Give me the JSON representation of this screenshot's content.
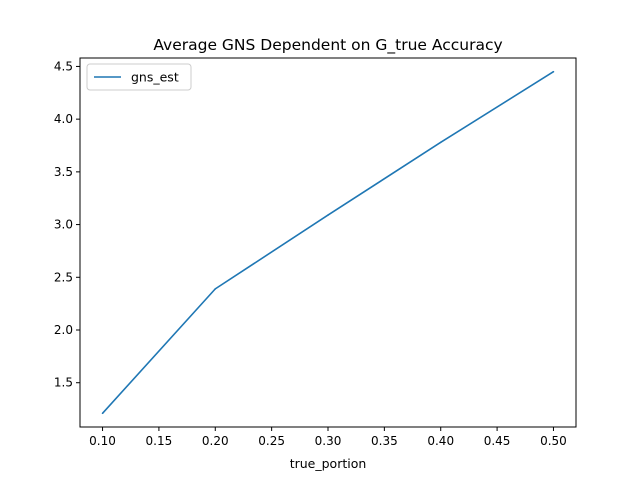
{
  "chart_data": {
    "type": "line",
    "title": "Average GNS Dependent on G_true Accuracy",
    "xlabel": "true_portion",
    "ylabel": "",
    "x": [
      0.1,
      0.2,
      0.3,
      0.4,
      0.5
    ],
    "series": [
      {
        "name": "gns_est",
        "color": "#1f77b4",
        "values": [
          1.21,
          2.39,
          3.09,
          3.78,
          4.45
        ]
      }
    ],
    "xlim": [
      0.08,
      0.52
    ],
    "ylim": [
      1.08,
      4.58
    ],
    "x_ticks": [
      "0.10",
      "0.15",
      "0.20",
      "0.25",
      "0.30",
      "0.35",
      "0.40",
      "0.45",
      "0.50"
    ],
    "y_ticks": [
      "1.5",
      "2.0",
      "2.5",
      "3.0",
      "3.5",
      "4.0",
      "4.5"
    ],
    "grid": false,
    "legend": {
      "position": "upper-left",
      "entries": [
        "gns_est"
      ]
    }
  }
}
